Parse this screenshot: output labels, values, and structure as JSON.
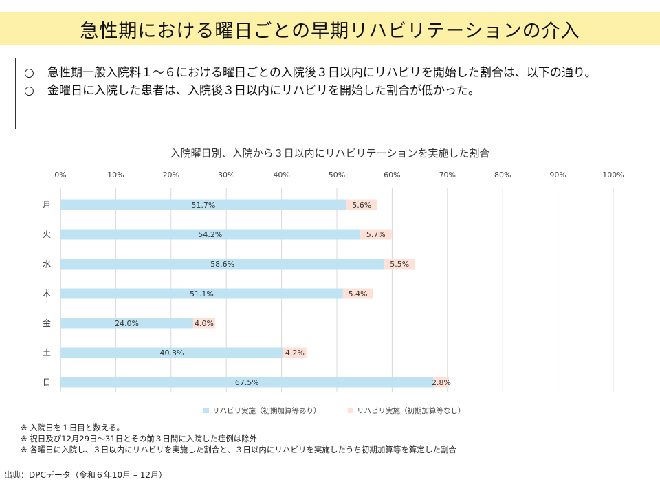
{
  "header": {
    "title": "急性期における曜日ごとの早期リハビリテーションの介入"
  },
  "summary": {
    "marker": "○",
    "lines": [
      "急性期一般入院料１～６における曜日ごとの入院後３日以内にリハビリを開始した割合は、以下の通り。",
      "金曜日に入院した患者は、入院後３日以内にリハビリを開始した割合が低かった。"
    ]
  },
  "chart_data": {
    "type": "bar",
    "orientation": "horizontal",
    "stacked": true,
    "title": "入院曜日別、入院から３日以内にリハビリテーションを実施した割合",
    "categories": [
      "月",
      "火",
      "水",
      "木",
      "金",
      "土",
      "日"
    ],
    "x_ticks": [
      "0%",
      "10%",
      "20%",
      "30%",
      "40%",
      "50%",
      "60%",
      "70%",
      "80%",
      "90%",
      "100%"
    ],
    "xlim": [
      0,
      100
    ],
    "grid": true,
    "legend_position": "bottom",
    "series": [
      {
        "name": "リハビリ実施（初期加算等あり）",
        "color": "#bfe3f3",
        "values": [
          51.7,
          54.2,
          58.6,
          51.1,
          24.0,
          40.3,
          67.5
        ],
        "labels": [
          "51.7%",
          "54.2%",
          "58.6%",
          "51.1%",
          "24.0%",
          "40.3%",
          "67.5%"
        ]
      },
      {
        "name": "リハビリ実施（初期加算等なし）",
        "color": "#fde0d6",
        "values": [
          5.6,
          5.7,
          5.5,
          5.4,
          4.0,
          4.2,
          2.8
        ],
        "labels": [
          "5.6%",
          "5.7%",
          "5.5%",
          "5.4%",
          "4.0%",
          "4.2%",
          "2.8%"
        ]
      }
    ]
  },
  "notes": [
    "※ 入院日を１日目と数える。",
    "※ 祝日及び12月29日～31日とその前３日間に入院した症例は除外",
    "※ 各曜日に入院し、３日以内にリハビリを実施した割合と、３日以内にリハビリを実施したうち初期加算等を算定した割合"
  ],
  "source": "出典：DPCデータ（令和６年10月 – 12月）"
}
